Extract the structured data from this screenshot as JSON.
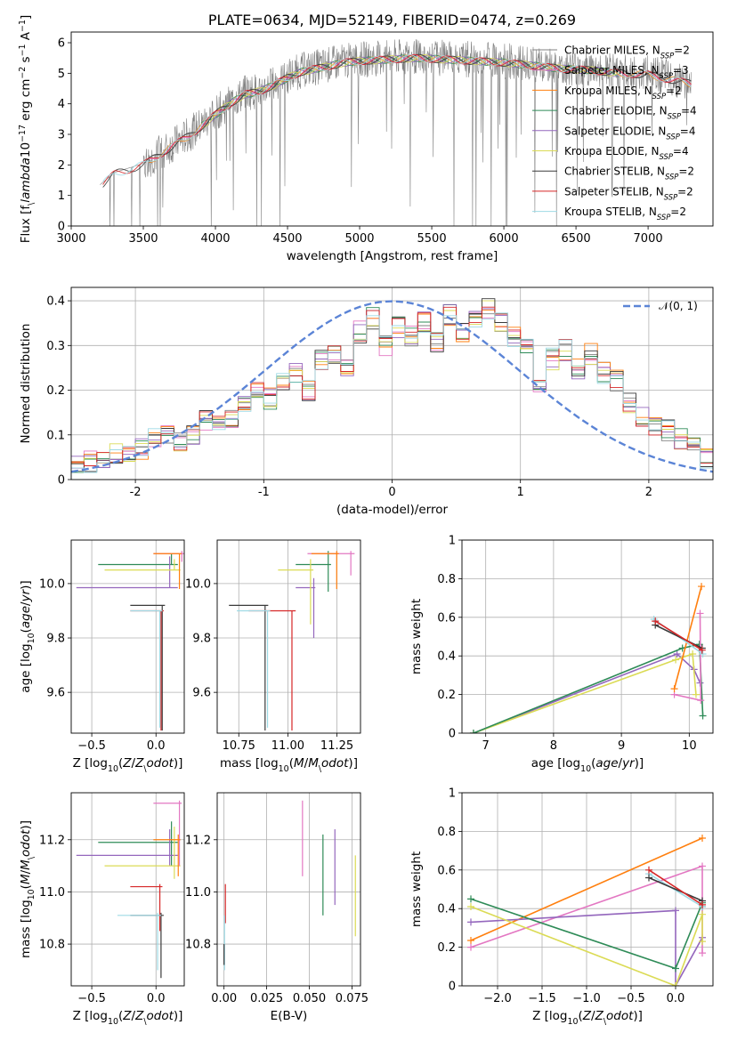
{
  "chart_data": [
    {
      "id": "spectrum",
      "type": "line",
      "title": "PLATE=0634, MJD=52149, FIBERID=0474, z=0.269",
      "xlabel": "wavelength [Angstrom, rest frame]",
      "ylabel": "Flux [f$_\\lambda$10$^{-17}$ erg cm$^{-2}$ s$^{-1}$ A$^{-1}$]",
      "xlim": [
        3000,
        7450
      ],
      "ylim": [
        0,
        6.35
      ],
      "xticks": [
        3000,
        3500,
        4000,
        4500,
        5000,
        5500,
        6000,
        6500,
        7000
      ],
      "yticks": [
        0,
        1,
        2,
        3,
        4,
        5,
        6
      ],
      "grid": false,
      "legend_position": "top-right",
      "data_color": "#808080",
      "data_range": [
        3200,
        7300
      ],
      "continuum": {
        "wavelength": [
          3200,
          3300,
          3400,
          3500,
          3600,
          3700,
          3800,
          3900,
          4000,
          4100,
          4200,
          4300,
          4400,
          4500,
          4600,
          4700,
          4800,
          4900,
          5000,
          5200,
          5400,
          5600,
          5800,
          6000,
          6200,
          6400,
          6600,
          6800,
          7000,
          7300
        ],
        "flux": [
          1.35,
          1.75,
          1.9,
          2.05,
          2.35,
          2.65,
          2.95,
          3.3,
          3.7,
          4.05,
          4.35,
          4.45,
          4.65,
          4.9,
          5.1,
          5.2,
          5.3,
          5.4,
          5.45,
          5.5,
          5.55,
          5.5,
          5.45,
          5.4,
          5.3,
          5.2,
          5.15,
          5.05,
          5.0,
          4.7
        ]
      },
      "series": [
        {
          "name": "Chabrier MILES, N$_{SSP}$=2",
          "color": "#808080",
          "start": 3540,
          "end": 7300
        },
        {
          "name": "Salpeter MILES, N$_{SSP}$=3",
          "color": "#e377c2",
          "start": 3540,
          "end": 7300
        },
        {
          "name": "Kroupa MILES, N$_{SSP}$=2",
          "color": "#ff7f0e",
          "start": 3540,
          "end": 7300
        },
        {
          "name": "Chabrier ELODIE, N$_{SSP}$=4",
          "color": "#2e8b57",
          "start": 3900,
          "end": 6800
        },
        {
          "name": "Salpeter ELODIE, N$_{SSP}$=4",
          "color": "#9467bd",
          "start": 3900,
          "end": 6800
        },
        {
          "name": "Kroupa ELODIE, N$_{SSP}$=4",
          "color": "#dbdb55",
          "start": 3900,
          "end": 6800
        },
        {
          "name": "Chabrier STELIB, N$_{SSP}$=2",
          "color": "#3a3a3a",
          "start": 3220,
          "end": 7300
        },
        {
          "name": "Salpeter STELIB, N$_{SSP}$=2",
          "color": "#d62728",
          "start": 3220,
          "end": 7300
        },
        {
          "name": "Kroupa STELIB, N$_{SSP}$=2",
          "color": "#9edae5",
          "start": 3220,
          "end": 7300
        }
      ]
    },
    {
      "id": "residuals",
      "type": "histogram",
      "xlabel": "(data-model)/error",
      "ylabel": "Normed distribution",
      "xlim": [
        -2.5,
        2.5
      ],
      "ylim": [
        0,
        0.43
      ],
      "xticks": [
        -2,
        -1,
        0,
        1,
        2
      ],
      "yticks": [
        0.0,
        0.1,
        0.2,
        0.3,
        0.4
      ],
      "grid": true,
      "legend_position": "top-right",
      "legend": "$\\mathcal{N}(0,1)$",
      "gaussian_color": "#5b84d6",
      "bins": [
        -2.5,
        2.5
      ],
      "bin_width": 0.1,
      "base_values": [
        0.035,
        0.04,
        0.05,
        0.06,
        0.055,
        0.07,
        0.09,
        0.1,
        0.08,
        0.1,
        0.13,
        0.12,
        0.14,
        0.17,
        0.2,
        0.18,
        0.22,
        0.24,
        0.2,
        0.27,
        0.28,
        0.25,
        0.33,
        0.36,
        0.3,
        0.34,
        0.32,
        0.35,
        0.31,
        0.37,
        0.33,
        0.36,
        0.38,
        0.35,
        0.32,
        0.3,
        0.22,
        0.27,
        0.29,
        0.25,
        0.28,
        0.24,
        0.22,
        0.17,
        0.14,
        0.12,
        0.11,
        0.09,
        0.07,
        0.05
      ]
    },
    {
      "id": "age-vs-metallicity",
      "type": "scatter",
      "xlabel": "Z [log$_{10}$($Z/Z_\\odot$)]",
      "ylabel": "age  [log$_{10}$($age/yr$)]",
      "xlim": [
        -0.66,
        0.22
      ],
      "ylim": [
        9.45,
        10.16
      ],
      "xticks": [
        -0.5,
        0.0
      ],
      "xticklabels": [
        "−0.5",
        "0.0"
      ],
      "yticks": [
        9.6,
        9.8,
        10.0
      ],
      "yticklabels": [
        "9.6",
        "9.8",
        "10.0"
      ],
      "grid": true,
      "lines": [
        {
          "color": "#2e8b57",
          "x0": -0.45,
          "x1": 0.17,
          "y": 10.07,
          "ylo": 10.07,
          "yhi": 10.11
        },
        {
          "color": "#9467bd",
          "x0": -0.62,
          "x1": 0.17,
          "y": 9.985,
          "ylo": 9.985,
          "yhi": 10.1
        },
        {
          "color": "#dbdb55",
          "x0": -0.4,
          "x1": 0.19,
          "y": 10.05,
          "ylo": 10.05,
          "yhi": 10.09
        },
        {
          "color": "#e377c2",
          "x0": -0.02,
          "x1": 0.22,
          "y": 10.11,
          "ylo": 10.08,
          "yhi": 10.12
        },
        {
          "color": "#ff7f0e",
          "x0": -0.02,
          "x1": 0.2,
          "y": 10.11,
          "ylo": 9.98,
          "yhi": 10.11
        },
        {
          "color": "#3a3a3a",
          "x0": -0.2,
          "x1": 0.07,
          "y": 9.92,
          "ylo": 9.46,
          "yhi": 9.92
        },
        {
          "color": "#d62728",
          "x0": -0.2,
          "x1": 0.06,
          "y": 9.9,
          "ylo": 9.46,
          "yhi": 9.9
        },
        {
          "color": "#9edae5",
          "x0": -0.2,
          "x1": 0.05,
          "y": 9.9,
          "ylo": 9.47,
          "yhi": 9.9
        }
      ]
    },
    {
      "id": "age-vs-mass",
      "type": "scatter",
      "xlabel": "mass [log$_{10}$($M/M_\\odot$)]",
      "ylabel": "",
      "xlim": [
        10.64,
        11.37
      ],
      "ylim": [
        9.45,
        10.16
      ],
      "xticks": [
        10.75,
        11.0,
        11.25
      ],
      "xticklabels": [
        "10.75",
        "11.00",
        "11.25"
      ],
      "yticks": [
        9.6,
        9.8,
        10.0
      ],
      "yticklabels": [
        "9.6",
        "9.8",
        "10.0"
      ],
      "grid": true,
      "lines": [
        {
          "color": "#2e8b57",
          "x0": 11.04,
          "x1": 11.22,
          "y": 10.07,
          "ylo": 9.97,
          "yhi": 10.12
        },
        {
          "color": "#9467bd",
          "x0": 11.04,
          "x1": 11.14,
          "y": 9.985,
          "ylo": 9.8,
          "yhi": 10.02
        },
        {
          "color": "#dbdb55",
          "x0": 10.95,
          "x1": 11.13,
          "y": 10.05,
          "ylo": 9.85,
          "yhi": 10.09
        },
        {
          "color": "#e377c2",
          "x0": 11.1,
          "x1": 11.34,
          "y": 10.11,
          "ylo": 10.03,
          "yhi": 10.12
        },
        {
          "color": "#ff7f0e",
          "x0": 11.12,
          "x1": 11.26,
          "y": 10.11,
          "ylo": 9.98,
          "yhi": 10.12
        },
        {
          "color": "#3a3a3a",
          "x0": 10.7,
          "x1": 10.9,
          "y": 9.92,
          "ylo": 9.46,
          "yhi": 9.92
        },
        {
          "color": "#d62728",
          "x0": 10.8,
          "x1": 11.04,
          "y": 9.9,
          "ylo": 9.46,
          "yhi": 9.9
        },
        {
          "color": "#9edae5",
          "x0": 10.74,
          "x1": 10.91,
          "y": 9.9,
          "ylo": 9.47,
          "yhi": 9.9
        }
      ]
    },
    {
      "id": "mass-weight-vs-age",
      "type": "line",
      "xlabel": "age  [log$_{10}$($age/yr$)]",
      "ylabel": "mass weight",
      "xlim": [
        6.65,
        10.35
      ],
      "ylim": [
        0,
        1
      ],
      "xticks": [
        7,
        8,
        9,
        10
      ],
      "yticks": [
        0.0,
        0.2,
        0.4,
        0.6,
        0.8,
        1.0
      ],
      "grid": true,
      "series": [
        {
          "color": "#9467bd",
          "x": [
            6.82,
            9.82,
            10.07,
            10.16
          ],
          "y": [
            0.0,
            0.41,
            0.33,
            0.26
          ]
        },
        {
          "color": "#dbdb55",
          "x": [
            6.82,
            9.8,
            10.05,
            10.1
          ],
          "y": [
            0.0,
            0.38,
            0.41,
            0.2
          ]
        },
        {
          "color": "#2e8b57",
          "x": [
            6.82,
            9.9,
            10.15,
            10.2
          ],
          "y": [
            0.0,
            0.44,
            0.46,
            0.09
          ]
        },
        {
          "color": "#e377c2",
          "x": [
            9.78,
            10.17,
            10.16
          ],
          "y": [
            0.2,
            0.17,
            0.62
          ]
        },
        {
          "color": "#ff7f0e",
          "x": [
            9.78,
            10.18
          ],
          "y": [
            0.23,
            0.76
          ]
        },
        {
          "color": "#9edae5",
          "x": [
            9.48,
            10.2
          ],
          "y": [
            0.59,
            0.41
          ]
        },
        {
          "color": "#3a3a3a",
          "x": [
            9.5,
            10.19
          ],
          "y": [
            0.56,
            0.44
          ]
        },
        {
          "color": "#d62728",
          "x": [
            9.5,
            10.19
          ],
          "y": [
            0.58,
            0.43
          ]
        }
      ]
    },
    {
      "id": "mass-vs-metallicity",
      "type": "scatter",
      "xlabel": "Z [log$_{10}$($Z/Z_\\odot$)]",
      "ylabel": "mass [log$_{10}$($M/M_\\odot$)]",
      "xlim": [
        -0.66,
        0.22
      ],
      "ylim": [
        10.64,
        11.38
      ],
      "xticks": [
        -0.5,
        0.0
      ],
      "xticklabels": [
        "−0.5",
        "0.0"
      ],
      "yticks": [
        10.8,
        11.0,
        11.2
      ],
      "yticklabels": [
        "10.8",
        "11.0",
        "11.2"
      ],
      "grid": true,
      "lines": [
        {
          "color": "#2e8b57",
          "x0": -0.45,
          "x1": 0.17,
          "y": 11.19,
          "ylo": 11.1,
          "yhi": 11.27
        },
        {
          "color": "#9467bd",
          "x0": -0.62,
          "x1": 0.17,
          "y": 11.14,
          "ylo": 11.1,
          "yhi": 11.24
        },
        {
          "color": "#dbdb55",
          "x0": -0.4,
          "x1": 0.19,
          "y": 11.1,
          "ylo": 11.05,
          "yhi": 11.25
        },
        {
          "color": "#e377c2",
          "x0": -0.02,
          "x1": 0.2,
          "y": 11.34,
          "ylo": 11.1,
          "yhi": 11.35
        },
        {
          "color": "#ff7f0e",
          "x0": -0.02,
          "x1": 0.19,
          "y": 11.2,
          "ylo": 11.06,
          "yhi": 11.22
        },
        {
          "color": "#3a3a3a",
          "x0": -0.2,
          "x1": 0.06,
          "y": 10.91,
          "ylo": 10.67,
          "yhi": 10.92
        },
        {
          "color": "#d62728",
          "x0": -0.2,
          "x1": 0.05,
          "y": 11.02,
          "ylo": 10.85,
          "yhi": 11.03
        },
        {
          "color": "#9edae5",
          "x0": -0.3,
          "x1": 0.04,
          "y": 10.91,
          "ylo": 10.7,
          "yhi": 10.92
        }
      ]
    },
    {
      "id": "mass-vs-extinction",
      "type": "scatter",
      "xlabel": "E(B-V)",
      "ylabel": "",
      "xlim": [
        -0.004,
        0.08
      ],
      "ylim": [
        10.64,
        11.38
      ],
      "xticks": [
        0.0,
        0.025,
        0.05,
        0.075
      ],
      "xticklabels": [
        "0.00",
        "0.025",
        "0.050",
        "0.075"
      ],
      "yticks": [
        10.8,
        11.0,
        11.2
      ],
      "yticklabels": [
        "10.8",
        "11.0",
        "11.2"
      ],
      "grid": true,
      "segments": [
        {
          "color": "#e377c2",
          "x": 0.046,
          "ylo": 11.06,
          "yhi": 11.35
        },
        {
          "color": "#2e8b57",
          "x": 0.058,
          "ylo": 10.91,
          "yhi": 11.22
        },
        {
          "color": "#9467bd",
          "x": 0.065,
          "ylo": 10.95,
          "yhi": 11.24
        },
        {
          "color": "#dbdb55",
          "x": 0.077,
          "ylo": 10.83,
          "yhi": 11.14
        },
        {
          "color": "#d62728",
          "x": 0.0008,
          "ylo": 10.88,
          "yhi": 11.03
        },
        {
          "color": "#9edae5",
          "x": 0.0003,
          "ylo": 10.7,
          "yhi": 10.91
        },
        {
          "color": "#3a3a3a",
          "x": 0.0,
          "ylo": 10.72,
          "yhi": 10.8
        }
      ]
    },
    {
      "id": "mass-weight-vs-metallicity",
      "type": "line",
      "xlabel": "Z [log$_{10}$($Z/Z_\\odot$)]",
      "ylabel": "mass weight",
      "xlim": [
        -2.4,
        0.42
      ],
      "ylim": [
        0,
        1
      ],
      "xticks": [
        -2.0,
        -1.5,
        -1.0,
        -0.5,
        0.0
      ],
      "xticklabels": [
        "−2.0",
        "−1.5",
        "−1.0",
        "−0.5",
        "0.0"
      ],
      "yticks": [
        0.0,
        0.2,
        0.4,
        0.6,
        0.8,
        1.0
      ],
      "grid": true,
      "series": [
        {
          "color": "#ff7f0e",
          "x": [
            -2.3,
            0.3
          ],
          "y": [
            0.235,
            0.765
          ]
        },
        {
          "color": "#e377c2",
          "x": [
            -2.3,
            0.3,
            0.3
          ],
          "y": [
            0.2,
            0.62,
            0.17
          ]
        },
        {
          "color": "#9467bd",
          "x": [
            -2.3,
            0.0,
            0.0,
            0.3
          ],
          "y": [
            0.33,
            0.39,
            0.0,
            0.25
          ]
        },
        {
          "color": "#2e8b57",
          "x": [
            -2.3,
            0.0,
            0.3,
            0.3
          ],
          "y": [
            0.45,
            0.09,
            0.43,
            0.41
          ]
        },
        {
          "color": "#dbdb55",
          "x": [
            -2.3,
            0.0,
            0.3,
            0.3
          ],
          "y": [
            0.41,
            0.0,
            0.37,
            0.23
          ]
        },
        {
          "color": "#9edae5",
          "x": [
            -0.3,
            0.3
          ],
          "y": [
            0.58,
            0.41
          ]
        },
        {
          "color": "#3a3a3a",
          "x": [
            -0.3,
            0.3
          ],
          "y": [
            0.56,
            0.44
          ]
        },
        {
          "color": "#d62728",
          "x": [
            -0.3,
            0.3
          ],
          "y": [
            0.6,
            0.42
          ]
        }
      ]
    }
  ]
}
